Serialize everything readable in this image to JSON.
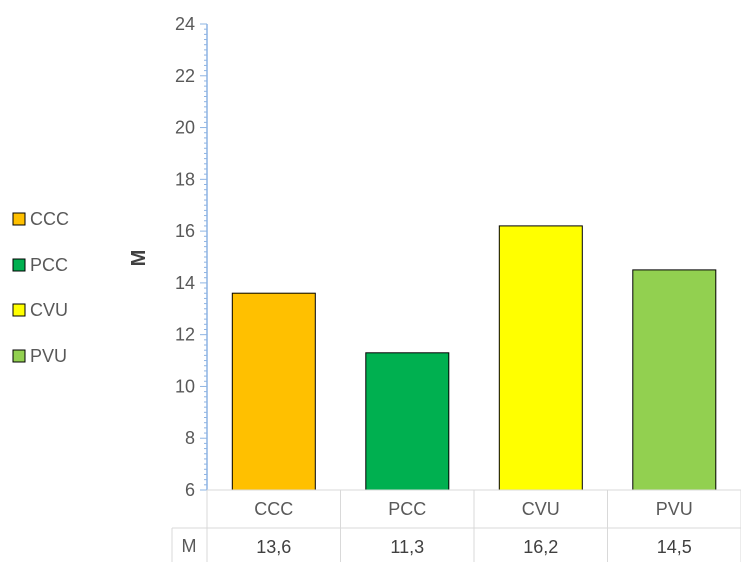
{
  "chart_data": {
    "type": "bar",
    "categories": [
      "CCC",
      "PCC",
      "CVU",
      "PVU"
    ],
    "values": [
      13.6,
      11.3,
      16.2,
      14.5
    ],
    "value_labels": [
      "13,6",
      "11,3",
      "16,2",
      "14,5"
    ],
    "colors": [
      "#FFC000",
      "#00B050",
      "#FFFF00",
      "#92D050"
    ],
    "ylabel": "M",
    "ylim": [
      6,
      24
    ],
    "y_ticks": [
      6,
      8,
      10,
      12,
      14,
      16,
      18,
      20,
      22,
      24
    ],
    "table_row_label": "M",
    "legend": {
      "position": "left",
      "entries": [
        "CCC",
        "PCC",
        "CVU",
        "PVU"
      ]
    },
    "grid": false
  }
}
